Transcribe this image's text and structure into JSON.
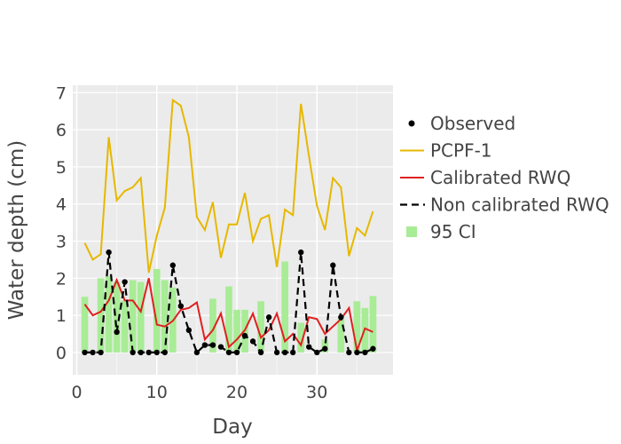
{
  "chart_data": {
    "type": "line",
    "xlabel": "Day",
    "ylabel": "Water depth (cm)",
    "xlim": [
      -0.5,
      39.5
    ],
    "ylim": [
      -0.6,
      7.2
    ],
    "x_ticks": [
      0,
      10,
      20,
      30
    ],
    "y_ticks": [
      0,
      1,
      2,
      3,
      4,
      5,
      6,
      7
    ],
    "grid": true,
    "legend_position": "right",
    "x": [
      1,
      2,
      3,
      4,
      5,
      6,
      7,
      8,
      9,
      10,
      11,
      12,
      13,
      14,
      15,
      16,
      17,
      18,
      19,
      20,
      21,
      22,
      23,
      24,
      25,
      26,
      27,
      28,
      29,
      30,
      31,
      32,
      33,
      34,
      35,
      36,
      37
    ],
    "series": [
      {
        "name": "Observed",
        "kind": "markers",
        "color": "#000000",
        "values": [
          0,
          0,
          0,
          2.7,
          0.55,
          1.9,
          0,
          0,
          0,
          0,
          0,
          2.35,
          1.25,
          0.6,
          0,
          0.2,
          0.2,
          0.15,
          0,
          0,
          0.45,
          0.3,
          0,
          0.95,
          0,
          0,
          0,
          2.7,
          0.15,
          0,
          0.1,
          2.35,
          0.95,
          0,
          0,
          0,
          0.1
        ]
      },
      {
        "name": "PCPF-1",
        "kind": "line",
        "color": "#e6b800",
        "values": [
          2.95,
          2.5,
          2.65,
          5.8,
          4.1,
          4.35,
          4.45,
          4.7,
          2.15,
          3.15,
          3.9,
          6.8,
          6.65,
          5.8,
          3.65,
          3.3,
          4.05,
          2.55,
          3.45,
          3.45,
          4.3,
          3.0,
          3.6,
          3.7,
          2.3,
          3.85,
          3.7,
          6.7,
          5.3,
          3.95,
          3.3,
          4.7,
          4.45,
          2.6,
          3.35,
          3.15,
          3.8
        ]
      },
      {
        "name": "Calibrated RWQ",
        "kind": "line",
        "color": "#e02020",
        "values": [
          1.3,
          1.0,
          1.1,
          1.4,
          1.95,
          1.4,
          1.4,
          1.1,
          2.0,
          0.75,
          0.7,
          0.85,
          1.15,
          1.2,
          1.35,
          0.35,
          0.6,
          1.05,
          0.15,
          0.35,
          0.6,
          1.05,
          0.4,
          0.6,
          1.05,
          0.3,
          0.5,
          0.2,
          0.95,
          0.9,
          0.5,
          0.7,
          0.9,
          1.2,
          0.05,
          0.65,
          0.55
        ]
      },
      {
        "name": "Non calibrated RWQ",
        "kind": "dash",
        "color": "#000000",
        "values": [
          0,
          0,
          0,
          2.7,
          0.55,
          1.9,
          0,
          0,
          0,
          0,
          0,
          2.35,
          1.25,
          0.6,
          0,
          0.2,
          0.2,
          0.15,
          0,
          0,
          0.45,
          0.3,
          0,
          0.95,
          0,
          0,
          0,
          2.7,
          0.15,
          0,
          0.1,
          2.35,
          0.95,
          0,
          0,
          0,
          0.1
        ]
      },
      {
        "name": "95 CI",
        "kind": "bar",
        "color": "#a8ec96",
        "values": [
          1.5,
          0,
          2.0,
          2.05,
          1.9,
          1.4,
          1.95,
          1.9,
          0,
          2.25,
          1.95,
          1.75,
          0,
          0,
          0,
          0,
          1.45,
          0,
          1.78,
          1.15,
          1.15,
          0,
          1.38,
          0,
          0,
          2.45,
          0,
          0.8,
          0,
          0,
          0.35,
          0,
          0.9,
          0,
          1.38,
          1.2,
          1.52
        ]
      }
    ]
  }
}
